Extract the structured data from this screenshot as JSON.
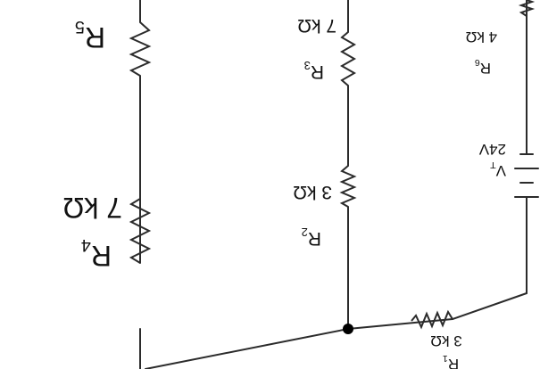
{
  "colors": {
    "wire": "#2b2b2b",
    "text": "#111111",
    "background": "#ffffff"
  },
  "orientation": "rotated 180 degrees",
  "components": {
    "R1": {
      "letter": "R",
      "sub": "1",
      "value": "3 kΩ"
    },
    "R2": {
      "letter": "R",
      "sub": "2",
      "value": "3 kΩ"
    },
    "R3": {
      "letter": "R",
      "sub": "3",
      "value": "7 kΩ"
    },
    "R4": {
      "letter": "R",
      "sub": "4",
      "value": "7 kΩ"
    },
    "R5": {
      "letter": "R",
      "sub": "5"
    },
    "R6": {
      "letter": "R",
      "sub": "6",
      "value": "4 kΩ"
    },
    "VT": {
      "letter": "V",
      "sub": "T",
      "value": "24V"
    }
  }
}
